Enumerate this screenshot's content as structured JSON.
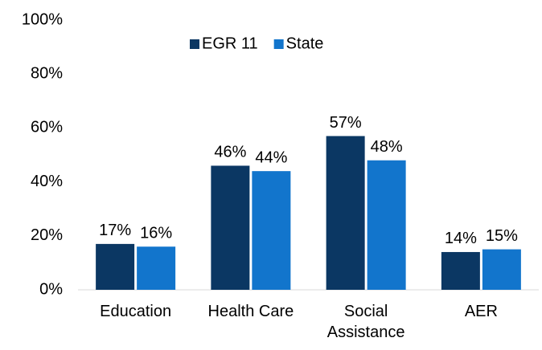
{
  "chart_data": {
    "type": "bar",
    "categories": [
      "Education",
      "Health Care",
      "Social Assistance",
      "AER"
    ],
    "series": [
      {
        "name": "EGR 11",
        "color": "#0b3763",
        "values": [
          17,
          46,
          57,
          14
        ],
        "value_labels": [
          "17%",
          "46%",
          "57%",
          "14%"
        ]
      },
      {
        "name": "State",
        "color": "#1275cc",
        "values": [
          16,
          44,
          48,
          15
        ],
        "value_labels": [
          "16%",
          "44%",
          "48%",
          "15%"
        ]
      }
    ],
    "ylim": [
      0,
      100
    ],
    "yticks": [
      {
        "value": 0,
        "label": "0%"
      },
      {
        "value": 20,
        "label": "20%"
      },
      {
        "value": 40,
        "label": "40%"
      },
      {
        "value": 60,
        "label": "60%"
      },
      {
        "value": 80,
        "label": "80%"
      },
      {
        "value": 100,
        "label": "100%"
      }
    ],
    "grid": false,
    "legend": "top"
  }
}
